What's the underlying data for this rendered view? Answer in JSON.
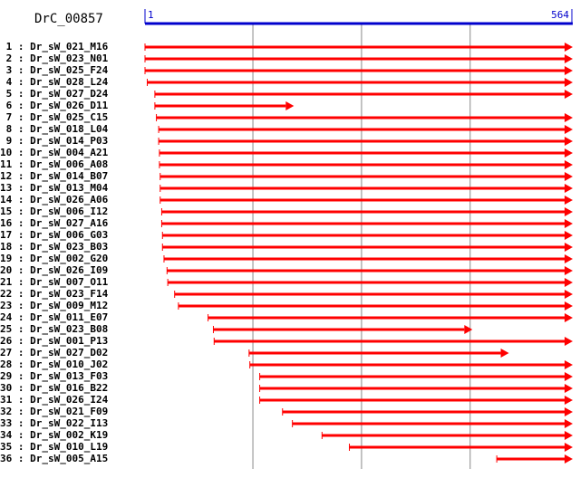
{
  "title": "DrC_00857",
  "scale": {
    "start_label": "1",
    "end_label": "564",
    "start": 1,
    "end": 564
  },
  "colors": {
    "axis": "#0000cc",
    "arrow": "#ff0000",
    "grid": "#888888",
    "text": "#000000"
  },
  "gridlines": [
    143,
    286,
    429
  ],
  "reads": [
    {
      "index": "1",
      "name": "Dr_sW_021_M16",
      "start": 1,
      "end": 564,
      "continues": true
    },
    {
      "index": "2",
      "name": "Dr_sW_023_N01",
      "start": 1,
      "end": 564,
      "continues": true
    },
    {
      "index": "3",
      "name": "Dr_sW_025_F24",
      "start": 1,
      "end": 564,
      "continues": true
    },
    {
      "index": "4",
      "name": "Dr_sW_028_L24",
      "start": 4,
      "end": 564,
      "continues": true
    },
    {
      "index": "5",
      "name": "Dr_sW_027_D24",
      "start": 14,
      "end": 564,
      "continues": true
    },
    {
      "index": "6",
      "name": "Dr_sW_026_D11",
      "start": 14,
      "end": 197,
      "continues": false
    },
    {
      "index": "7",
      "name": "Dr_sW_025_C15",
      "start": 16,
      "end": 564,
      "continues": true
    },
    {
      "index": "8",
      "name": "Dr_sW_018_L04",
      "start": 19,
      "end": 564,
      "continues": true
    },
    {
      "index": "9",
      "name": "Dr_sW_014_P03",
      "start": 19,
      "end": 564,
      "continues": true
    },
    {
      "index": "10",
      "name": "Dr_sW_004_A21",
      "start": 20,
      "end": 564,
      "continues": true
    },
    {
      "index": "11",
      "name": "Dr_sW_006_A08",
      "start": 20,
      "end": 564,
      "continues": true
    },
    {
      "index": "12",
      "name": "Dr_sW_014_B07",
      "start": 21,
      "end": 564,
      "continues": true
    },
    {
      "index": "13",
      "name": "Dr_sW_013_M04",
      "start": 21,
      "end": 564,
      "continues": true
    },
    {
      "index": "14",
      "name": "Dr_sW_026_A06",
      "start": 21,
      "end": 564,
      "continues": true
    },
    {
      "index": "15",
      "name": "Dr_sW_006_I12",
      "start": 23,
      "end": 564,
      "continues": true
    },
    {
      "index": "16",
      "name": "Dr_sW_027_A16",
      "start": 23,
      "end": 564,
      "continues": true
    },
    {
      "index": "17",
      "name": "Dr_sW_006_G03",
      "start": 24,
      "end": 564,
      "continues": true
    },
    {
      "index": "18",
      "name": "Dr_sW_023_B03",
      "start": 24,
      "end": 564,
      "continues": true
    },
    {
      "index": "19",
      "name": "Dr_sW_002_G20",
      "start": 26,
      "end": 564,
      "continues": true
    },
    {
      "index": "20",
      "name": "Dr_sW_026_I09",
      "start": 30,
      "end": 564,
      "continues": true
    },
    {
      "index": "21",
      "name": "Dr_sW_007_O11",
      "start": 31,
      "end": 564,
      "continues": true
    },
    {
      "index": "22",
      "name": "Dr_sW_023_F14",
      "start": 40,
      "end": 564,
      "continues": true
    },
    {
      "index": "23",
      "name": "Dr_sW_009_M12",
      "start": 45,
      "end": 564,
      "continues": true
    },
    {
      "index": "24",
      "name": "Dr_sW_011_E07",
      "start": 84,
      "end": 564,
      "continues": true
    },
    {
      "index": "25",
      "name": "Dr_sW_023_B08",
      "start": 91,
      "end": 432,
      "continues": false
    },
    {
      "index": "26",
      "name": "Dr_sW_001_P13",
      "start": 92,
      "end": 564,
      "continues": true
    },
    {
      "index": "27",
      "name": "Dr_sW_027_D02",
      "start": 138,
      "end": 480,
      "continues": false
    },
    {
      "index": "28",
      "name": "Dr_sW_010_J02",
      "start": 139,
      "end": 564,
      "continues": true
    },
    {
      "index": "29",
      "name": "Dr_sW_013_F03",
      "start": 152,
      "end": 564,
      "continues": true
    },
    {
      "index": "30",
      "name": "Dr_sW_016_B22",
      "start": 152,
      "end": 564,
      "continues": true
    },
    {
      "index": "31",
      "name": "Dr_sW_026_I24",
      "start": 152,
      "end": 564,
      "continues": true
    },
    {
      "index": "32",
      "name": "Dr_sW_021_F09",
      "start": 182,
      "end": 564,
      "continues": true
    },
    {
      "index": "33",
      "name": "Dr_sW_022_I13",
      "start": 195,
      "end": 564,
      "continues": true
    },
    {
      "index": "34",
      "name": "Dr_sW_002_K19",
      "start": 234,
      "end": 564,
      "continues": true
    },
    {
      "index": "35",
      "name": "Dr_sW_010_L19",
      "start": 270,
      "end": 564,
      "continues": false
    },
    {
      "index": "36",
      "name": "Dr_sW_005_A15",
      "start": 464,
      "end": 564,
      "continues": false
    }
  ]
}
